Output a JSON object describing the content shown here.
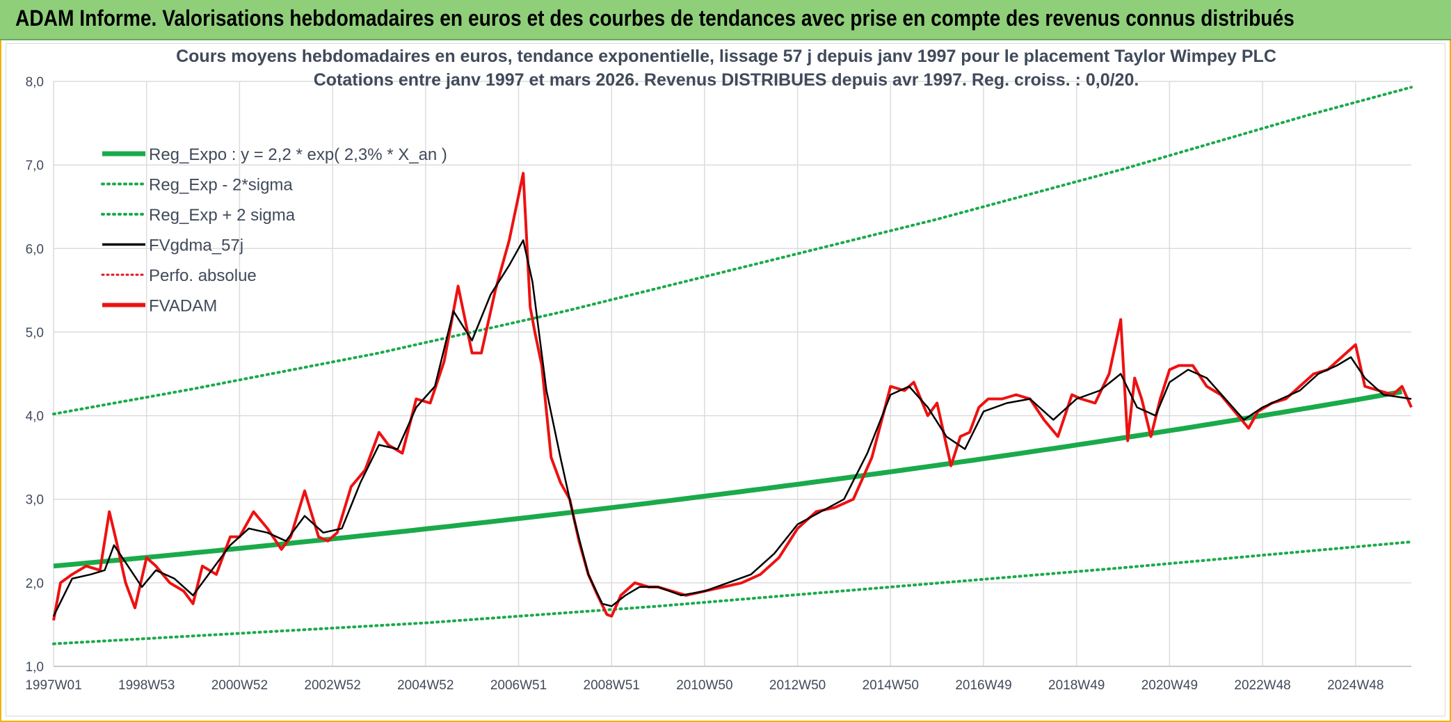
{
  "banner": {
    "title": "ADAM Informe. Valorisations hebdomadaires en euros et des courbes de tendances avec prise en compte des revenus connus distribués"
  },
  "colors": {
    "reg_expo": "#1aaa4a",
    "sigma_bands": "#1aaa4a",
    "fvgdma": "#000000",
    "perfo": "#e0141e",
    "fvadam": "#ee1111",
    "gridline": "#dcdcdc",
    "banner_bg": "#8fcf7a"
  },
  "chart_data": {
    "type": "line",
    "title_lines": [
      "Cours moyens hebdomadaires en euros, tendance exponentielle, lissage 57 j depuis janv 1997 pour le placement Taylor Wimpey PLC",
      "Cotations entre janv 1997 et mars 2026. Revenus DISTRIBUES depuis avr 1997. Reg. croiss. : 0,0/20."
    ],
    "ylim": [
      1.0,
      8.0
    ],
    "yticks": [
      "1,0",
      "2,0",
      "3,0",
      "4,0",
      "5,0",
      "6,0",
      "7,0",
      "8,0"
    ],
    "xlim": [
      1997.0,
      2026.2
    ],
    "xticks": [
      {
        "label": "1997W01",
        "x": 1997.0
      },
      {
        "label": "1998W53",
        "x": 1999.0
      },
      {
        "label": "2000W52",
        "x": 2001.0
      },
      {
        "label": "2002W52",
        "x": 2003.0
      },
      {
        "label": "2004W52",
        "x": 2005.0
      },
      {
        "label": "2006W51",
        "x": 2007.0
      },
      {
        "label": "2008W51",
        "x": 2009.0
      },
      {
        "label": "2010W50",
        "x": 2011.0
      },
      {
        "label": "2012W50",
        "x": 2013.0
      },
      {
        "label": "2014W50",
        "x": 2015.0
      },
      {
        "label": "2016W49",
        "x": 2017.0
      },
      {
        "label": "2018W49",
        "x": 2019.0
      },
      {
        "label": "2020W49",
        "x": 2021.0
      },
      {
        "label": "2022W48",
        "x": 2023.0
      },
      {
        "label": "2024W48",
        "x": 2025.0
      }
    ],
    "legend": [
      {
        "name": "Reg_Expo : y = 2,2 * exp( 2,3% *  X_an )",
        "style": "thick",
        "series": "reg_expo"
      },
      {
        "name": "Reg_Exp - 2*sigma",
        "style": "dotted-green",
        "series": "sigma_low"
      },
      {
        "name": "Reg_Exp + 2 sigma",
        "style": "dotted-green",
        "series": "sigma_high"
      },
      {
        "name": "FVgdma_57j",
        "style": "black",
        "series": "fvgdma"
      },
      {
        "name": "Perfo. absolue",
        "style": "dotted-red",
        "series": "perfo"
      },
      {
        "name": "FVADAM",
        "style": "red",
        "series": "fvadam"
      }
    ],
    "series": {
      "reg_expo": {
        "a": 2.2,
        "rate": 0.023,
        "x0": 1997.0,
        "x1": 2026.2
      },
      "sigma_low": {
        "x": [
          1997.0,
          2005.0,
          2010.0,
          2015.0,
          2020.0,
          2026.2
        ],
        "y": [
          1.27,
          1.52,
          1.72,
          1.95,
          2.18,
          2.49
        ]
      },
      "sigma_high": {
        "x": [
          1997.0,
          2000.0,
          2004.0,
          2008.0,
          2012.0,
          2016.0,
          2020.0,
          2024.0,
          2026.2
        ],
        "y": [
          4.02,
          4.32,
          4.75,
          5.25,
          5.8,
          6.35,
          6.95,
          7.6,
          7.93
        ]
      },
      "fvadam": {
        "x": [
          1997.0,
          1997.15,
          1997.4,
          1997.7,
          1998.0,
          1998.2,
          1998.35,
          1998.55,
          1998.75,
          1999.0,
          1999.2,
          1999.5,
          1999.8,
          2000.0,
          2000.2,
          2000.5,
          2000.8,
          2001.0,
          2001.3,
          2001.6,
          2001.9,
          2002.1,
          2002.4,
          2002.7,
          2002.9,
          2003.1,
          2003.4,
          2003.7,
          2004.0,
          2004.2,
          2004.5,
          2004.8,
          2005.1,
          2005.4,
          2005.7,
          2006.0,
          2006.2,
          2006.5,
          2006.8,
          2007.1,
          2007.25,
          2007.35,
          2007.5,
          2007.7,
          2007.9,
          2008.1,
          2008.3,
          2008.5,
          2008.7,
          2008.9,
          2009.0,
          2009.2,
          2009.5,
          2009.8,
          2010.0,
          2010.3,
          2010.6,
          2011.0,
          2011.4,
          2011.8,
          2012.2,
          2012.6,
          2013.0,
          2013.4,
          2013.8,
          2014.2,
          2014.6,
          2015.0,
          2015.3,
          2015.5,
          2015.8,
          2016.0,
          2016.3,
          2016.5,
          2016.7,
          2016.9,
          2017.1,
          2017.4,
          2017.7,
          2018.0,
          2018.3,
          2018.6,
          2018.9,
          2019.1,
          2019.4,
          2019.7,
          2019.95,
          2020.1,
          2020.25,
          2020.4,
          2020.6,
          2020.8,
          2021.0,
          2021.2,
          2021.5,
          2021.8,
          2022.1,
          2022.4,
          2022.7,
          2022.9,
          2023.2,
          2023.5,
          2023.8,
          2024.1,
          2024.4,
          2024.7,
          2025.0,
          2025.2,
          2025.5,
          2025.8,
          2026.0,
          2026.2
        ],
        "y": [
          1.55,
          2.0,
          2.1,
          2.2,
          2.15,
          2.85,
          2.5,
          2.0,
          1.7,
          2.3,
          2.2,
          2.0,
          1.9,
          1.75,
          2.2,
          2.1,
          2.55,
          2.55,
          2.85,
          2.65,
          2.4,
          2.55,
          3.1,
          2.55,
          2.5,
          2.6,
          3.15,
          3.35,
          3.8,
          3.65,
          3.55,
          4.2,
          4.15,
          4.65,
          5.55,
          4.75,
          4.75,
          5.5,
          6.1,
          6.9,
          5.3,
          5.0,
          4.6,
          3.5,
          3.2,
          3.0,
          2.5,
          2.1,
          1.85,
          1.62,
          1.6,
          1.85,
          2.0,
          1.95,
          1.95,
          1.9,
          1.85,
          1.9,
          1.95,
          2.0,
          2.1,
          2.3,
          2.65,
          2.85,
          2.9,
          3.0,
          3.5,
          4.35,
          4.3,
          4.4,
          4.0,
          4.15,
          3.4,
          3.75,
          3.8,
          4.1,
          4.2,
          4.2,
          4.25,
          4.2,
          3.95,
          3.75,
          4.25,
          4.2,
          4.15,
          4.5,
          5.15,
          3.7,
          4.45,
          4.2,
          3.75,
          4.2,
          4.55,
          4.6,
          4.6,
          4.35,
          4.25,
          4.05,
          3.85,
          4.05,
          4.15,
          4.2,
          4.35,
          4.5,
          4.55,
          4.7,
          4.85,
          4.35,
          4.3,
          4.25,
          4.35,
          4.1
        ]
      },
      "fvgdma": {
        "x": [
          1997.0,
          1997.4,
          1997.8,
          1998.1,
          1998.3,
          1998.6,
          1998.9,
          1999.2,
          1999.6,
          2000.0,
          2000.4,
          2000.8,
          2001.2,
          2001.6,
          2002.0,
          2002.4,
          2002.8,
          2003.2,
          2003.6,
          2004.0,
          2004.4,
          2004.8,
          2005.2,
          2005.6,
          2006.0,
          2006.4,
          2006.8,
          2007.1,
          2007.3,
          2007.6,
          2007.9,
          2008.2,
          2008.5,
          2008.8,
          2009.0,
          2009.3,
          2009.6,
          2010.0,
          2010.5,
          2011.0,
          2011.5,
          2012.0,
          2012.5,
          2013.0,
          2013.5,
          2014.0,
          2014.5,
          2015.0,
          2015.4,
          2015.8,
          2016.2,
          2016.6,
          2017.0,
          2017.5,
          2018.0,
          2018.5,
          2019.0,
          2019.5,
          2019.95,
          2020.3,
          2020.7,
          2021.0,
          2021.4,
          2021.8,
          2022.2,
          2022.6,
          2023.0,
          2023.4,
          2023.8,
          2024.2,
          2024.6,
          2024.9,
          2025.2,
          2025.6,
          2026.2
        ],
        "y": [
          1.6,
          2.05,
          2.1,
          2.15,
          2.45,
          2.2,
          1.95,
          2.15,
          2.05,
          1.85,
          2.15,
          2.45,
          2.65,
          2.6,
          2.5,
          2.8,
          2.6,
          2.65,
          3.2,
          3.65,
          3.6,
          4.1,
          4.35,
          5.25,
          4.9,
          5.45,
          5.8,
          6.1,
          5.6,
          4.3,
          3.5,
          2.75,
          2.1,
          1.75,
          1.72,
          1.85,
          1.95,
          1.95,
          1.85,
          1.9,
          2.0,
          2.1,
          2.35,
          2.7,
          2.85,
          3.0,
          3.55,
          4.25,
          4.35,
          4.1,
          3.75,
          3.6,
          4.05,
          4.15,
          4.2,
          3.95,
          4.2,
          4.3,
          4.5,
          4.1,
          4.0,
          4.4,
          4.55,
          4.45,
          4.2,
          3.95,
          4.1,
          4.2,
          4.3,
          4.5,
          4.6,
          4.7,
          4.45,
          4.25,
          4.2
        ]
      }
    }
  }
}
